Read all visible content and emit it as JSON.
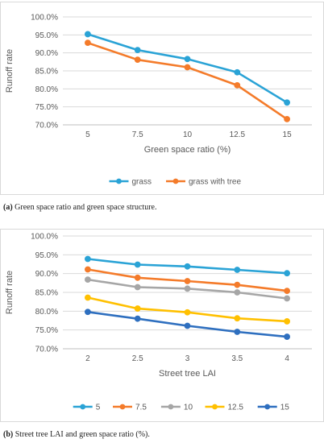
{
  "chart_data": [
    {
      "type": "line",
      "categories": [
        "5",
        "7.5",
        "10",
        "12.5",
        "15"
      ],
      "series": [
        {
          "name": "grass",
          "color": "#2aa3d6",
          "values": [
            95.2,
            90.8,
            88.3,
            84.6,
            76.2
          ]
        },
        {
          "name": "grass with tree",
          "color": "#f47b2a",
          "values": [
            92.8,
            88.1,
            86.0,
            81.0,
            71.6
          ]
        }
      ],
      "xlabel": "Green space ratio (%)",
      "ylabel": "Runoff rate",
      "ylim": [
        70,
        100
      ],
      "yticks": [
        "70.0%",
        "75.0%",
        "80.0%",
        "85.0%",
        "90.0%",
        "95.0%",
        "100.0%"
      ],
      "grid": true,
      "legend": "bottom"
    },
    {
      "type": "line",
      "categories": [
        "2",
        "2.5",
        "3",
        "3.5",
        "4"
      ],
      "series": [
        {
          "name": "5",
          "color": "#2aa3d6",
          "values": [
            93.9,
            92.4,
            91.9,
            91.0,
            90.1
          ]
        },
        {
          "name": "7.5",
          "color": "#f47b2a",
          "values": [
            91.1,
            88.9,
            88.0,
            87.0,
            85.4
          ]
        },
        {
          "name": "10",
          "color": "#a6a6a6",
          "values": [
            88.4,
            86.4,
            86.0,
            85.0,
            83.4
          ]
        },
        {
          "name": "12.5",
          "color": "#ffc000",
          "values": [
            83.6,
            80.7,
            79.7,
            78.1,
            77.3
          ]
        },
        {
          "name": "15",
          "color": "#2e6fbf",
          "values": [
            79.8,
            78.0,
            76.1,
            74.5,
            73.2
          ]
        }
      ],
      "xlabel": "Street tree LAI",
      "ylabel": "Runoff rate",
      "ylim": [
        70,
        100
      ],
      "yticks": [
        "70.0%",
        "75.0%",
        "80.0%",
        "85.0%",
        "90.0%",
        "95.0%",
        "100.0%"
      ],
      "grid": true,
      "legend": "bottom"
    }
  ],
  "captions": [
    {
      "tag": "(a)",
      "text": " Green space ratio and green space structure."
    },
    {
      "tag": "(b)",
      "text": " Street tree LAI and green space ratio (%)."
    }
  ]
}
